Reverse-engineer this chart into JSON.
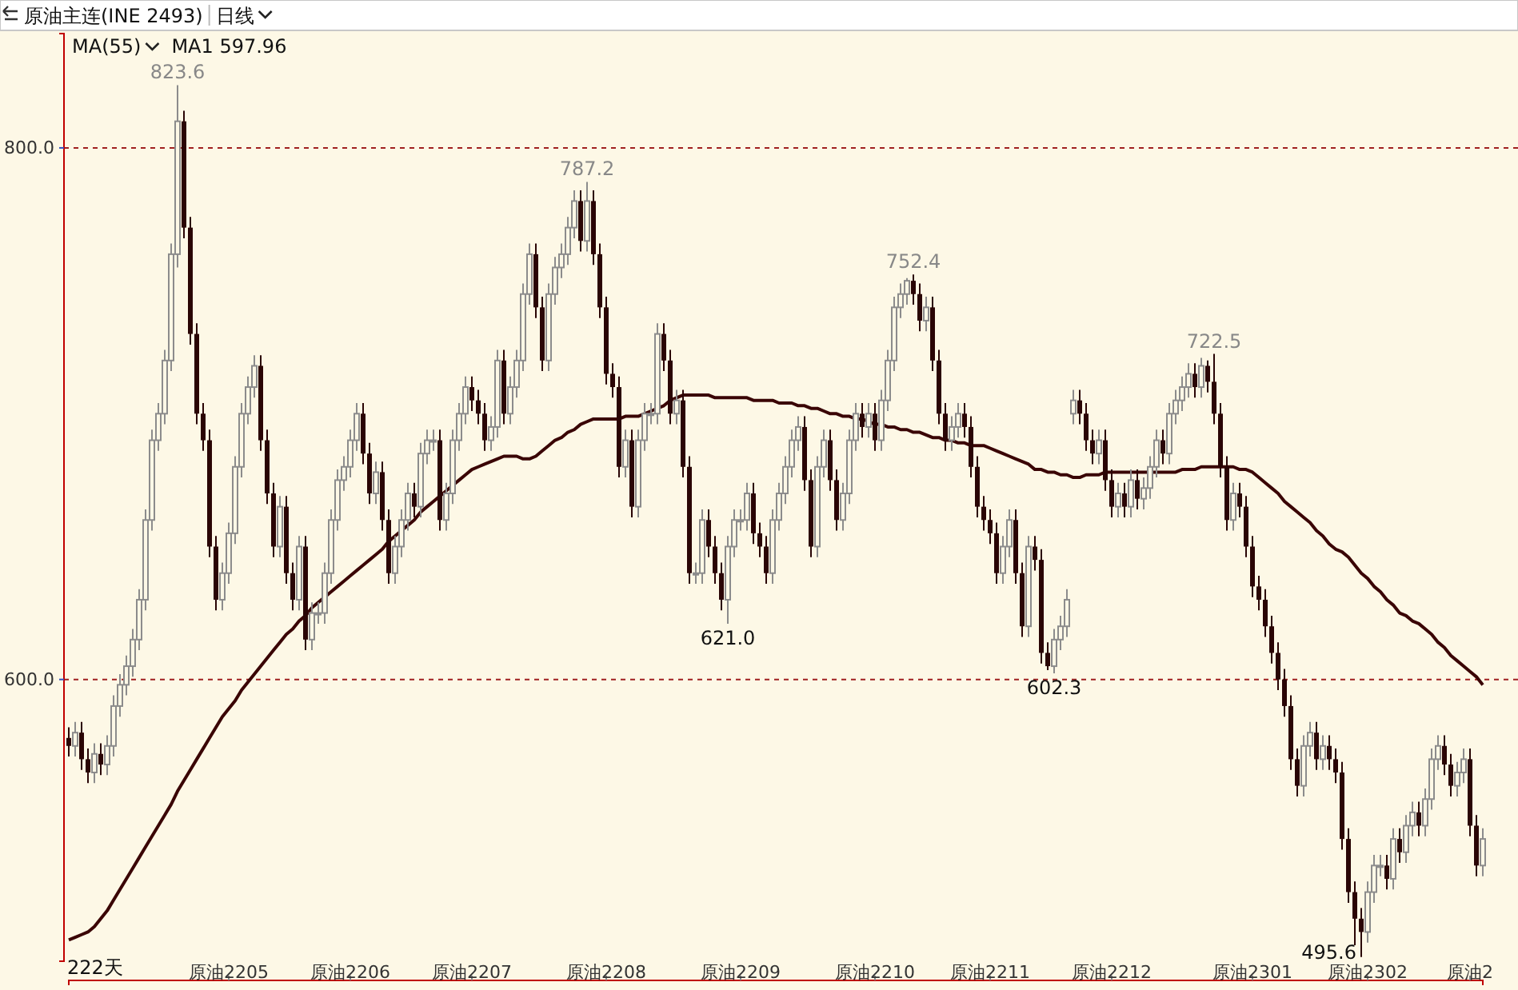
{
  "chart_data": {
    "type": "candlestick",
    "title": "原油主连(INE 2493)",
    "subtitle": "日线",
    "categories": [
      null,
      null,
      null,
      null,
      null,
      null,
      null,
      null,
      null,
      null,
      null,
      null,
      null,
      null,
      null,
      null,
      null,
      null,
      null,
      null,
      null,
      null,
      null,
      null,
      null,
      "原油2205",
      null,
      null,
      null,
      null,
      null,
      null,
      null,
      null,
      null,
      null,
      null,
      null,
      null,
      null,
      null,
      null,
      null,
      null,
      "原油2206",
      null,
      null,
      null,
      null,
      null,
      null,
      null,
      null,
      null,
      null,
      null,
      null,
      null,
      null,
      null,
      null,
      null,
      null,
      "原油2207",
      null,
      null,
      null,
      null,
      null,
      null,
      null,
      null,
      null,
      null,
      null,
      null,
      null,
      null,
      null,
      null,
      null,
      null,
      null,
      null,
      "原油2208",
      null,
      null,
      null,
      null,
      null,
      null,
      null,
      null,
      null,
      null,
      null,
      null,
      null,
      null,
      null,
      null,
      null,
      null,
      null,
      null,
      "原油2209",
      null,
      null,
      null,
      null,
      null,
      null,
      null,
      null,
      null,
      null,
      null,
      null,
      null,
      null,
      null,
      null,
      null,
      null,
      null,
      null,
      "原油2210",
      null,
      null,
      null,
      null,
      null,
      null,
      null,
      null,
      null,
      null,
      null,
      null,
      null,
      null,
      null,
      null,
      null,
      "原油2211",
      null,
      null,
      null,
      null,
      null,
      null,
      null,
      null,
      null,
      null,
      null,
      null,
      null,
      null,
      null,
      null,
      null,
      null,
      "原油2212",
      null,
      null,
      null,
      null,
      null,
      null,
      null,
      null,
      null,
      null,
      null,
      null,
      null,
      null,
      null,
      null,
      null,
      null,
      null,
      null,
      null,
      "原油2301",
      null,
      null,
      null,
      null,
      null,
      null,
      null,
      null,
      null,
      null,
      null,
      null,
      null,
      null,
      null,
      null,
      null,
      "原油2302",
      null,
      null,
      null,
      null,
      null,
      null,
      null,
      null,
      null,
      null,
      null,
      null,
      null,
      null,
      null,
      "原油2",
      null,
      null
    ],
    "series": [
      {
        "ohlc": [
          [
            578,
            582,
            571,
            575
          ],
          [
            575,
            584,
            571,
            580
          ],
          [
            580,
            584,
            566,
            570
          ],
          [
            570,
            574,
            561,
            565
          ],
          [
            565,
            576,
            561,
            572
          ],
          [
            572,
            576,
            564,
            568
          ],
          [
            568,
            579,
            564,
            575
          ],
          [
            575,
            594,
            571,
            590
          ],
          [
            590,
            602,
            586,
            598
          ],
          [
            598,
            609,
            594,
            605
          ],
          [
            605,
            619,
            601,
            615
          ],
          [
            615,
            634,
            611,
            630
          ],
          [
            630,
            664,
            626,
            660
          ],
          [
            660,
            694,
            656,
            690
          ],
          [
            690,
            704,
            686,
            700
          ],
          [
            700,
            724,
            696,
            720
          ],
          [
            720,
            764,
            716,
            760
          ],
          [
            760,
            823.6,
            755,
            810
          ],
          [
            810,
            814,
            766,
            770
          ],
          [
            770,
            774,
            726,
            730
          ],
          [
            730,
            734,
            696,
            700
          ],
          [
            700,
            704,
            686,
            690
          ],
          [
            690,
            694,
            646,
            650
          ],
          [
            650,
            654,
            626,
            630
          ],
          [
            630,
            644,
            626,
            640
          ],
          [
            640,
            659,
            636,
            655
          ],
          [
            655,
            684,
            651,
            680
          ],
          [
            680,
            704,
            676,
            700
          ],
          [
            700,
            714,
            696,
            710
          ],
          [
            710,
            722,
            706,
            718
          ],
          [
            718,
            722,
            686,
            690
          ],
          [
            690,
            694,
            666,
            670
          ],
          [
            670,
            674,
            646,
            650
          ],
          [
            650,
            669,
            646,
            665
          ],
          [
            665,
            669,
            636,
            640
          ],
          [
            640,
            644,
            626,
            630
          ],
          [
            630,
            654,
            626,
            650
          ],
          [
            650,
            654,
            611,
            615
          ],
          [
            615,
            629,
            611,
            625
          ],
          [
            625,
            629,
            621,
            625
          ],
          [
            625,
            644,
            621,
            640
          ],
          [
            640,
            664,
            636,
            660
          ],
          [
            660,
            679,
            656,
            675
          ],
          [
            675,
            684,
            671,
            680
          ],
          [
            680,
            694,
            676,
            690
          ],
          [
            690,
            704,
            686,
            700
          ],
          [
            700,
            704,
            681,
            685
          ],
          [
            685,
            689,
            666,
            670
          ],
          [
            670,
            682,
            666,
            678
          ],
          [
            678,
            682,
            656,
            660
          ],
          [
            660,
            664,
            636,
            640
          ],
          [
            640,
            654,
            636,
            650
          ],
          [
            650,
            664,
            646,
            660
          ],
          [
            660,
            674,
            656,
            670
          ],
          [
            670,
            674,
            661,
            665
          ],
          [
            665,
            689,
            661,
            685
          ],
          [
            685,
            694,
            681,
            690
          ],
          [
            690,
            694,
            686,
            690
          ],
          [
            690,
            694,
            656,
            660
          ],
          [
            660,
            674,
            656,
            670
          ],
          [
            670,
            694,
            666,
            690
          ],
          [
            690,
            704,
            686,
            700
          ],
          [
            700,
            714,
            696,
            710
          ],
          [
            710,
            714,
            701,
            705
          ],
          [
            705,
            709,
            696,
            700
          ],
          [
            700,
            704,
            686,
            690
          ],
          [
            690,
            699,
            686,
            695
          ],
          [
            695,
            724,
            691,
            720
          ],
          [
            720,
            724,
            696,
            700
          ],
          [
            700,
            714,
            696,
            710
          ],
          [
            710,
            724,
            706,
            720
          ],
          [
            720,
            749,
            716,
            745
          ],
          [
            745,
            764,
            741,
            760
          ],
          [
            760,
            764,
            736,
            740
          ],
          [
            740,
            744,
            716,
            720
          ],
          [
            720,
            749,
            716,
            745
          ],
          [
            745,
            759,
            741,
            755
          ],
          [
            755,
            764,
            751,
            760
          ],
          [
            760,
            774,
            756,
            770
          ],
          [
            770,
            784,
            766,
            780
          ],
          [
            780,
            784,
            761,
            765
          ],
          [
            765,
            787.2,
            761,
            780
          ],
          [
            780,
            784,
            756,
            760
          ],
          [
            760,
            764,
            736,
            740
          ],
          [
            740,
            744,
            711,
            715
          ],
          [
            715,
            719,
            706,
            710
          ],
          [
            710,
            714,
            676,
            680
          ],
          [
            680,
            694,
            676,
            690
          ],
          [
            690,
            694,
            661,
            665
          ],
          [
            665,
            694,
            661,
            690
          ],
          [
            690,
            704,
            686,
            700
          ],
          [
            700,
            704,
            696,
            700
          ],
          [
            700,
            734,
            696,
            730
          ],
          [
            730,
            734,
            716,
            720
          ],
          [
            720,
            724,
            696,
            700
          ],
          [
            700,
            709,
            696,
            705
          ],
          [
            705,
            709,
            676,
            680
          ],
          [
            680,
            684,
            636,
            640
          ],
          [
            640,
            644,
            636,
            640
          ],
          [
            640,
            664,
            636,
            660
          ],
          [
            660,
            664,
            646,
            650
          ],
          [
            650,
            654,
            636,
            640
          ],
          [
            640,
            644,
            626,
            630
          ],
          [
            630,
            654,
            621.0,
            650
          ],
          [
            650,
            664,
            646,
            660
          ],
          [
            660,
            664,
            656,
            660
          ],
          [
            660,
            674,
            656,
            670
          ],
          [
            670,
            674,
            651,
            655
          ],
          [
            655,
            659,
            646,
            650
          ],
          [
            650,
            654,
            636,
            640
          ],
          [
            640,
            664,
            636,
            660
          ],
          [
            660,
            674,
            656,
            670
          ],
          [
            670,
            684,
            666,
            680
          ],
          [
            680,
            694,
            676,
            690
          ],
          [
            690,
            699,
            686,
            695
          ],
          [
            695,
            699,
            671,
            675
          ],
          [
            675,
            679,
            646,
            650
          ],
          [
            650,
            684,
            646,
            680
          ],
          [
            680,
            694,
            676,
            690
          ],
          [
            690,
            694,
            671,
            675
          ],
          [
            675,
            679,
            656,
            660
          ],
          [
            660,
            674,
            656,
            670
          ],
          [
            670,
            694,
            666,
            690
          ],
          [
            690,
            704,
            686,
            700
          ],
          [
            700,
            704,
            691,
            695
          ],
          [
            695,
            704,
            691,
            700
          ],
          [
            700,
            704,
            686,
            690
          ],
          [
            690,
            709,
            686,
            705
          ],
          [
            705,
            724,
            701,
            720
          ],
          [
            720,
            744,
            716,
            740
          ],
          [
            740,
            749,
            736,
            745
          ],
          [
            745,
            751,
            741,
            750
          ],
          [
            750,
            752.4,
            741,
            745
          ],
          [
            745,
            749,
            731,
            735
          ],
          [
            735,
            744,
            731,
            740
          ],
          [
            740,
            744,
            716,
            720
          ],
          [
            720,
            724,
            696,
            700
          ],
          [
            700,
            704,
            686,
            690
          ],
          [
            690,
            699,
            686,
            695
          ],
          [
            695,
            704,
            691,
            700
          ],
          [
            700,
            704,
            691,
            695
          ],
          [
            695,
            699,
            676,
            680
          ],
          [
            680,
            684,
            661,
            665
          ],
          [
            665,
            669,
            656,
            660
          ],
          [
            660,
            664,
            651,
            655
          ],
          [
            655,
            659,
            636,
            640
          ],
          [
            640,
            654,
            636,
            650
          ],
          [
            650,
            664,
            646,
            660
          ],
          [
            660,
            664,
            636,
            640
          ],
          [
            640,
            644,
            616,
            620
          ],
          [
            620,
            654,
            616,
            650
          ],
          [
            650,
            654,
            641,
            645
          ],
          [
            645,
            649,
            606,
            610
          ],
          [
            610,
            614,
            603.5,
            605
          ],
          [
            605,
            619,
            602.3,
            615
          ],
          [
            615,
            624,
            611,
            620
          ],
          [
            620,
            634,
            616,
            630
          ],
          [
            700,
            709,
            696,
            705
          ],
          [
            705,
            709,
            696,
            700
          ],
          [
            700,
            704,
            686,
            690
          ],
          [
            690,
            694,
            681,
            685
          ],
          [
            685,
            694,
            681,
            690
          ],
          [
            690,
            694,
            671,
            675
          ],
          [
            675,
            679,
            661,
            665
          ],
          [
            665,
            674,
            661,
            670
          ],
          [
            670,
            674,
            661,
            665
          ],
          [
            665,
            679,
            661,
            675
          ],
          [
            675,
            679,
            664,
            668
          ],
          [
            668,
            676,
            664,
            672
          ],
          [
            672,
            684,
            668,
            680
          ],
          [
            680,
            694,
            676,
            690
          ],
          [
            690,
            694,
            681,
            685
          ],
          [
            685,
            704,
            681,
            700
          ],
          [
            700,
            709,
            696,
            705
          ],
          [
            705,
            714,
            701,
            710
          ],
          [
            710,
            719,
            706,
            715
          ],
          [
            715,
            719,
            706,
            710
          ],
          [
            710,
            721,
            706,
            718
          ],
          [
            718,
            720,
            708,
            712
          ],
          [
            712,
            722.5,
            696,
            700
          ],
          [
            700,
            704,
            676,
            680
          ],
          [
            680,
            684,
            656,
            660
          ],
          [
            660,
            674,
            656,
            670
          ],
          [
            670,
            674,
            661,
            665
          ],
          [
            665,
            669,
            646,
            650
          ],
          [
            650,
            654,
            631,
            635
          ],
          [
            635,
            639,
            626,
            630
          ],
          [
            630,
            634,
            616,
            620
          ],
          [
            620,
            624,
            606,
            610
          ],
          [
            610,
            614,
            596,
            600
          ],
          [
            600,
            604,
            586,
            590
          ],
          [
            590,
            594,
            566,
            570
          ],
          [
            570,
            574,
            556,
            560
          ],
          [
            560,
            579,
            556,
            575
          ],
          [
            575,
            584,
            571,
            580
          ],
          [
            580,
            584,
            566,
            570
          ],
          [
            570,
            579,
            566,
            575
          ],
          [
            575,
            579,
            566,
            570
          ],
          [
            570,
            574,
            561,
            565
          ],
          [
            565,
            569,
            536,
            540
          ],
          [
            540,
            544,
            516,
            520
          ],
          [
            520,
            524,
            500,
            510
          ],
          [
            510,
            514,
            495.6,
            505
          ],
          [
            505,
            524,
            501,
            520
          ],
          [
            520,
            534,
            516,
            530
          ],
          [
            530,
            534,
            526,
            530
          ],
          [
            530,
            534,
            521,
            525
          ],
          [
            525,
            544,
            521,
            540
          ],
          [
            540,
            544,
            531,
            535
          ],
          [
            535,
            549,
            531,
            545
          ],
          [
            545,
            554,
            541,
            550
          ],
          [
            550,
            554,
            541,
            545
          ],
          [
            545,
            559,
            541,
            555
          ],
          [
            555,
            574,
            551,
            570
          ],
          [
            570,
            579,
            566,
            575
          ],
          [
            575,
            579,
            564,
            568
          ],
          [
            568,
            572,
            556,
            560
          ],
          [
            560,
            569,
            556,
            565
          ],
          [
            565,
            574,
            561,
            570
          ],
          [
            570,
            574,
            541,
            545
          ],
          [
            545,
            549,
            526,
            530
          ],
          [
            530,
            544,
            526,
            540
          ]
        ]
      },
      {
        "type": "line",
        "color": "#3a0505",
        "values": [
          502,
          503,
          504,
          505,
          507,
          510,
          513,
          517,
          521,
          525,
          529,
          533,
          537,
          541,
          545,
          549,
          553,
          558,
          562,
          566,
          570,
          574,
          578,
          582,
          586,
          589,
          592,
          596,
          599,
          602,
          605,
          608,
          611,
          614,
          617,
          619,
          622,
          624,
          627,
          629,
          631,
          633,
          635,
          637,
          639,
          641,
          643,
          645,
          647,
          649,
          652,
          654,
          656,
          658,
          660,
          663,
          665,
          667,
          669,
          671,
          673,
          675,
          677,
          679,
          680,
          681,
          682,
          683,
          684,
          684,
          684,
          683,
          683,
          684,
          686,
          688,
          690,
          691,
          693,
          694,
          696,
          697,
          698,
          698,
          698,
          698,
          698,
          699,
          699,
          699,
          700,
          701,
          702,
          703,
          705,
          706,
          707,
          707,
          707,
          707,
          707,
          706,
          706,
          706,
          706,
          706,
          706,
          705,
          705,
          705,
          705,
          704,
          704,
          704,
          703,
          703,
          702,
          702,
          701,
          700,
          700,
          699,
          699,
          698,
          698,
          697,
          696,
          696,
          695,
          695,
          694,
          694,
          693,
          693,
          692,
          691,
          691,
          690,
          690,
          689,
          689,
          688,
          688,
          688,
          687,
          686,
          685,
          684,
          683,
          682,
          681,
          679,
          679,
          678,
          678,
          677,
          677,
          676,
          676,
          677,
          677,
          677,
          678,
          678,
          678,
          678,
          678,
          678,
          678,
          678,
          678,
          678,
          678,
          678,
          679,
          679,
          679,
          680,
          680,
          680,
          680,
          680,
          680,
          679,
          679,
          678,
          676,
          674,
          672,
          670,
          667,
          665,
          663,
          661,
          659,
          656,
          654,
          651,
          649,
          648,
          646,
          643,
          640,
          638,
          635,
          633,
          630,
          628,
          625,
          624,
          622,
          621,
          619,
          617,
          614,
          612,
          609,
          607,
          605,
          603,
          601,
          597.96
        ]
      }
    ],
    "ylim": [
      494,
      843
    ],
    "yticks": [
      {
        "value": 600,
        "label": "600.0"
      },
      {
        "value": 800,
        "label": "800.0"
      }
    ],
    "grid": "y",
    "annotations": [
      "MA(55)",
      "MA1 597.96",
      "222天",
      {
        "text": "823.6",
        "y": 823.6
      },
      {
        "text": "787.2",
        "y": 787.2
      },
      {
        "text": "621.0",
        "y": 621.0
      },
      {
        "text": "752.4",
        "y": 752.4
      },
      {
        "text": "602.3",
        "y": 602.3
      },
      {
        "text": "722.5",
        "y": 722.5
      },
      "495.6"
    ]
  }
}
